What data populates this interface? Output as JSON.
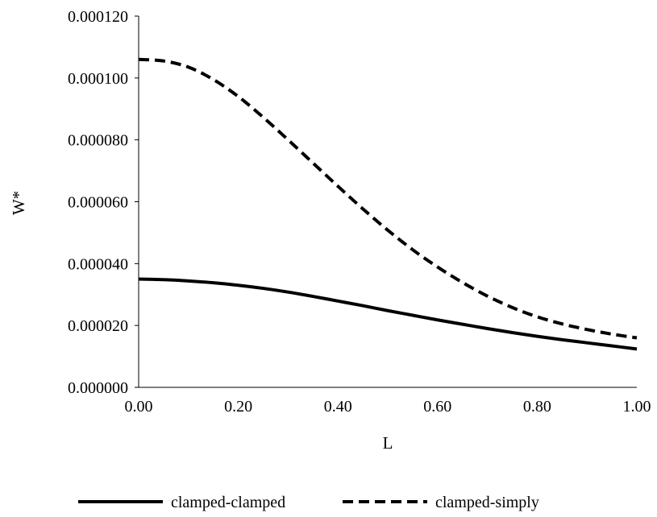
{
  "chart_data": {
    "type": "line",
    "title": "",
    "xlabel": "L",
    "ylabel": "W*",
    "xlim": [
      0.0,
      1.0
    ],
    "ylim": [
      0.0,
      0.00012
    ],
    "x_ticks": [
      0.0,
      0.2,
      0.4,
      0.6,
      0.8,
      1.0
    ],
    "x_tick_labels": [
      "0.00",
      "0.20",
      "0.40",
      "0.60",
      "0.80",
      "1.00"
    ],
    "y_ticks": [
      0.0,
      2e-05,
      4e-05,
      6e-05,
      8e-05,
      0.0001,
      0.00012
    ],
    "y_tick_labels": [
      "0.000000",
      "0.000020",
      "0.000040",
      "0.000060",
      "0.000080",
      "0.000100",
      "0.000120"
    ],
    "grid": false,
    "legend_position": "bottom",
    "x": [
      0.0,
      0.05,
      0.1,
      0.15,
      0.2,
      0.25,
      0.3,
      0.35,
      0.4,
      0.45,
      0.5,
      0.55,
      0.6,
      0.65,
      0.7,
      0.75,
      0.8,
      0.85,
      0.9,
      0.95,
      1.0
    ],
    "series": [
      {
        "name": "clamped-clamped",
        "style": "solid",
        "color": "#000000",
        "values": [
          3.5e-05,
          3.48e-05,
          3.44e-05,
          3.38e-05,
          3.3e-05,
          3.2e-05,
          3.08e-05,
          2.94e-05,
          2.79e-05,
          2.64e-05,
          2.48e-05,
          2.33e-05,
          2.18e-05,
          2.04e-05,
          1.9e-05,
          1.77e-05,
          1.65e-05,
          1.54e-05,
          1.44e-05,
          1.34e-05,
          1.24e-05
        ]
      },
      {
        "name": "clamped-simply",
        "style": "dashed",
        "color": "#000000",
        "values": [
          0.000106,
          0.0001055,
          0.0001035,
          9.95e-05,
          9.4e-05,
          8.73e-05,
          8e-05,
          7.25e-05,
          6.5e-05,
          5.77e-05,
          5.08e-05,
          4.45e-05,
          3.89e-05,
          3.39e-05,
          2.95e-05,
          2.58e-05,
          2.28e-05,
          2.05e-05,
          1.87e-05,
          1.72e-05,
          1.6e-05
        ]
      }
    ]
  }
}
